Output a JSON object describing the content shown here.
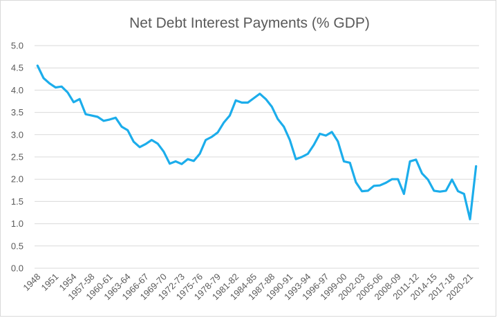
{
  "chart_data": {
    "type": "line",
    "title": "Net Debt Interest Payments (% GDP)",
    "xlabel": "",
    "ylabel": "",
    "ylim": [
      0,
      5
    ],
    "yticks": [
      "0.0",
      "0.5",
      "1.0",
      "1.5",
      "2.0",
      "2.5",
      "3.0",
      "3.5",
      "4.0",
      "4.5",
      "5.0"
    ],
    "grid": true,
    "legend": "none",
    "line_color": "#1cadeb",
    "x": [
      "1948",
      "1949",
      "1950",
      "1951",
      "1952",
      "1953",
      "1954",
      "1955",
      "1956",
      "1957-58",
      "1958-59",
      "1959-60",
      "1960-61",
      "1961-62",
      "1962-63",
      "1963-64",
      "1964-65",
      "1965-66",
      "1966-67",
      "1967-68",
      "1968-69",
      "1969-70",
      "1970-71",
      "1971-72",
      "1972-73",
      "1973-74",
      "1974-75",
      "1975-76",
      "1976-77",
      "1977-78",
      "1978-79",
      "1979-80",
      "1980-81",
      "1981-82",
      "1982-83",
      "1983-84",
      "1984-85",
      "1985-86",
      "1986-87",
      "1987-88",
      "1988-89",
      "1989-90",
      "1990-91",
      "1991-92",
      "1992-93",
      "1993-94",
      "1994-95",
      "1995-96",
      "1996-97",
      "1997-98",
      "1998-99",
      "1999-00",
      "2000-01",
      "2001-02",
      "2002-03",
      "2003-04",
      "2004-05",
      "2005-06",
      "2006-07",
      "2007-08",
      "2008-09",
      "2009-10",
      "2010-11",
      "2011-12",
      "2012-13",
      "2013-14",
      "2014-15",
      "2015-16",
      "2016-17",
      "2017-18",
      "2018-19",
      "2019-20",
      "2020-21",
      "2021-22"
    ],
    "x_tick_labels": [
      "1948",
      "1951",
      "1954",
      "1957-58",
      "1960-61",
      "1963-64",
      "1966-67",
      "1969-70",
      "1972-73",
      "1975-76",
      "1978-79",
      "1981-82",
      "1984-85",
      "1987-88",
      "1990-91",
      "1993-94",
      "1996-97",
      "1999-00",
      "2002-03",
      "2005-06",
      "2008-09",
      "2011-12",
      "2014-15",
      "2017-18",
      "2020-21"
    ],
    "series": [
      {
        "values": [
          4.55,
          4.27,
          4.15,
          4.06,
          4.08,
          3.95,
          3.73,
          3.8,
          3.46,
          3.43,
          3.4,
          3.31,
          3.34,
          3.38,
          3.18,
          3.1,
          2.84,
          2.72,
          2.79,
          2.88,
          2.8,
          2.62,
          2.35,
          2.4,
          2.34,
          2.45,
          2.41,
          2.57,
          2.88,
          2.95,
          3.05,
          3.27,
          3.43,
          3.77,
          3.72,
          3.72,
          3.82,
          3.92,
          3.8,
          3.63,
          3.35,
          3.18,
          2.88,
          2.45,
          2.5,
          2.57,
          2.77,
          3.02,
          2.98,
          3.06,
          2.85,
          2.4,
          2.37,
          1.93,
          1.73,
          1.74,
          1.85,
          1.86,
          1.92,
          2.0,
          2.0,
          1.67,
          2.4,
          2.44,
          2.13,
          1.99,
          1.74,
          1.72,
          1.74,
          1.99,
          1.73,
          1.67,
          1.1,
          2.29
        ]
      }
    ]
  }
}
